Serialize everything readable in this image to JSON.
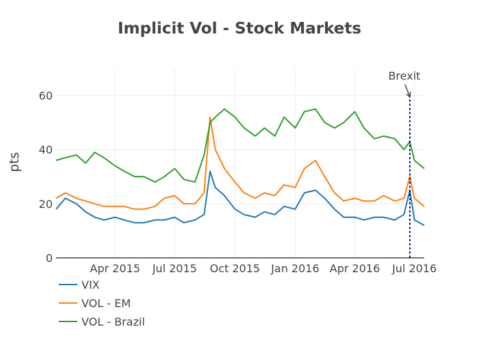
{
  "chart_data": {
    "type": "line",
    "title": "Implicit Vol - Stock Markets",
    "ylabel": "pts",
    "xlabel": "",
    "xlim": [
      "2015-01-01",
      "2016-07-16"
    ],
    "ylim": [
      0,
      70
    ],
    "x_ticks": [
      {
        "date": "2015-04-01",
        "label": "Apr 2015"
      },
      {
        "date": "2015-07-01",
        "label": "Jul 2015"
      },
      {
        "date": "2015-10-01",
        "label": "Oct 2015"
      },
      {
        "date": "2016-01-01",
        "label": "Jan 2016"
      },
      {
        "date": "2016-04-01",
        "label": "Apr 2016"
      },
      {
        "date": "2016-07-01",
        "label": "Jul 2016"
      }
    ],
    "y_ticks": [
      0,
      20,
      40,
      60
    ],
    "grid": true,
    "legend_position": "bottom-left",
    "x": [
      "2015-01-01",
      "2015-01-15",
      "2015-02-01",
      "2015-02-15",
      "2015-03-01",
      "2015-03-15",
      "2015-04-01",
      "2015-04-15",
      "2015-05-01",
      "2015-05-15",
      "2015-06-01",
      "2015-06-15",
      "2015-07-01",
      "2015-07-15",
      "2015-08-01",
      "2015-08-15",
      "2015-08-24",
      "2015-09-01",
      "2015-09-15",
      "2015-10-01",
      "2015-10-15",
      "2015-11-01",
      "2015-11-15",
      "2015-12-01",
      "2015-12-15",
      "2016-01-01",
      "2016-01-15",
      "2016-02-01",
      "2016-02-15",
      "2016-03-01",
      "2016-03-15",
      "2016-04-01",
      "2016-04-15",
      "2016-05-01",
      "2016-05-15",
      "2016-06-01",
      "2016-06-15",
      "2016-06-24",
      "2016-07-01",
      "2016-07-16"
    ],
    "series": [
      {
        "name": "VIX",
        "color": "#1f77b4",
        "values": [
          18,
          22,
          20,
          17,
          15,
          14,
          15,
          14,
          13,
          13,
          14,
          14,
          15,
          13,
          14,
          16,
          32,
          26,
          23,
          18,
          16,
          15,
          17,
          16,
          19,
          18,
          24,
          25,
          22,
          18,
          15,
          15,
          14,
          15,
          15,
          14,
          16,
          25,
          14,
          12
        ]
      },
      {
        "name": "VOL - EM",
        "color": "#ff7f0e",
        "values": [
          22,
          24,
          22,
          21,
          20,
          19,
          19,
          19,
          18,
          18,
          19,
          22,
          23,
          20,
          20,
          24,
          52,
          40,
          33,
          28,
          24,
          22,
          24,
          23,
          27,
          26,
          33,
          36,
          30,
          24,
          21,
          22,
          21,
          21,
          23,
          21,
          22,
          30,
          22,
          19
        ]
      },
      {
        "name": "VOL - Brazil",
        "color": "#2ca02c",
        "values": [
          36,
          37,
          38,
          35,
          39,
          37,
          34,
          32,
          30,
          30,
          28,
          30,
          33,
          29,
          28,
          38,
          50,
          52,
          55,
          52,
          48,
          45,
          48,
          45,
          52,
          48,
          54,
          55,
          50,
          48,
          50,
          54,
          48,
          44,
          45,
          44,
          40,
          43,
          36,
          33
        ]
      }
    ],
    "annotation": {
      "text": "Brexit",
      "x": "2016-06-24",
      "y": 60
    }
  }
}
